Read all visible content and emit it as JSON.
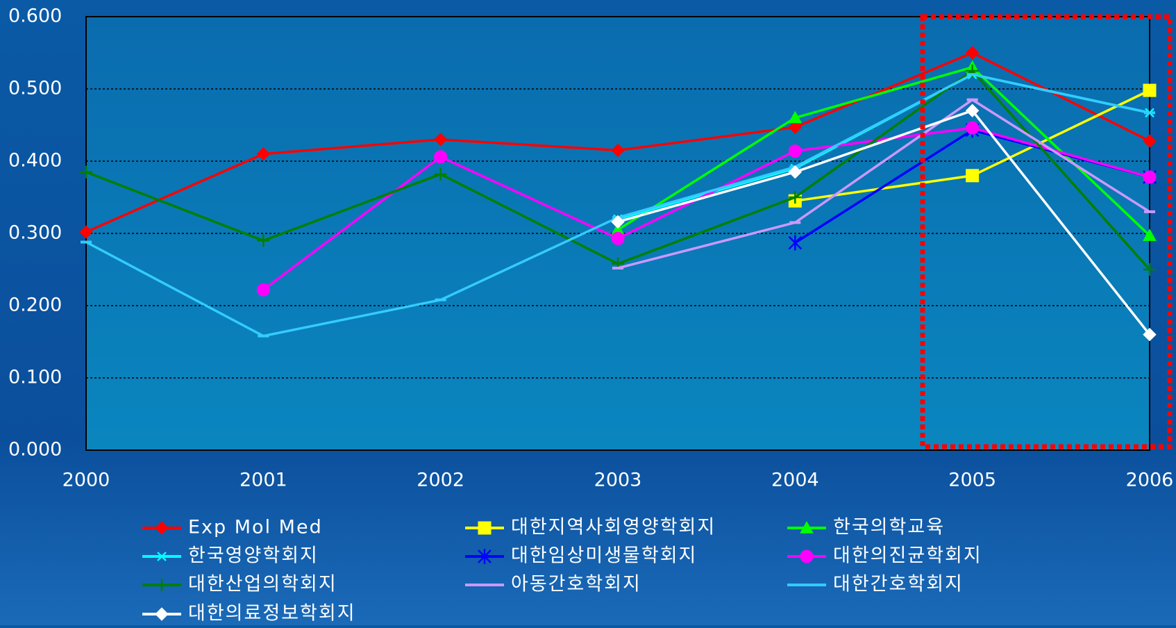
{
  "chart_data": {
    "type": "line",
    "categories": [
      "2000",
      "2001",
      "2002",
      "2003",
      "2004",
      "2005",
      "2006"
    ],
    "ylim": [
      0,
      0.6
    ],
    "yticks": [
      {
        "value": 0,
        "label": "0.000"
      },
      {
        "value": 0.1,
        "label": "0.100"
      },
      {
        "value": 0.2,
        "label": "0.200"
      },
      {
        "value": 0.3,
        "label": "0.300"
      },
      {
        "value": 0.4,
        "label": "0.400"
      },
      {
        "value": 0.5,
        "label": "0.500"
      },
      {
        "value": 0.6,
        "label": "0.600"
      }
    ],
    "grid": true,
    "series": [
      {
        "name": "Exp Mol Med",
        "color": "#ff0000",
        "marker": "diamond",
        "values": [
          0.302,
          0.41,
          0.43,
          0.415,
          0.447,
          0.55,
          0.428
        ]
      },
      {
        "name": "대한지역사회영양학회지",
        "color": "#ffff00",
        "marker": "square",
        "values": [
          null,
          null,
          null,
          null,
          0.345,
          0.38,
          0.498
        ]
      },
      {
        "name": "한국의학교육",
        "color": "#00ff00",
        "marker": "triangle",
        "values": [
          null,
          null,
          null,
          0.305,
          0.46,
          0.53,
          0.297
        ]
      },
      {
        "name": "한국영양학회지",
        "color": "#00ffff",
        "marker": "x",
        "values": [
          null,
          null,
          null,
          0.32,
          0.39,
          0.52,
          0.467
        ]
      },
      {
        "name": "대한임상미생물학회지",
        "color": "#0000ff",
        "marker": "asterisk",
        "values": [
          null,
          null,
          null,
          null,
          0.287,
          0.443,
          0.378
        ]
      },
      {
        "name": "대한의진균학회지",
        "color": "#ff00ff",
        "marker": "circle",
        "values": [
          null,
          0.222,
          0.406,
          0.293,
          0.414,
          0.446,
          0.378
        ]
      },
      {
        "name": "대한산업의학회지",
        "color": "#008000",
        "marker": "plus",
        "values": [
          0.385,
          0.29,
          0.382,
          0.258,
          0.35,
          0.525,
          0.25
        ]
      },
      {
        "name": "아동간호학회지",
        "color": "#cc99ff",
        "marker": "dash",
        "values": [
          null,
          null,
          null,
          0.252,
          0.315,
          0.485,
          0.33
        ]
      },
      {
        "name": "대한간호학회지",
        "color": "#33ccff",
        "marker": "dash",
        "values": [
          0.288,
          0.158,
          0.208,
          0.322,
          0.392,
          0.52,
          0.467
        ]
      },
      {
        "name": "대한의료정보학회지",
        "color": "#ffffff",
        "marker": "diamond",
        "values": [
          null,
          null,
          null,
          0.316,
          0.385,
          0.47,
          0.16
        ]
      }
    ]
  }
}
